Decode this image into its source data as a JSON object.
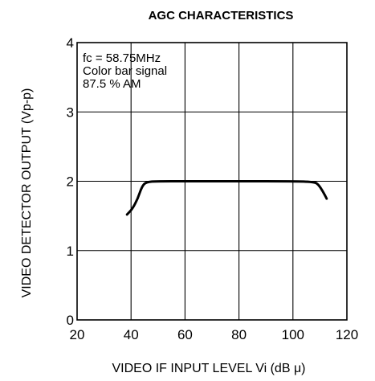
{
  "chart_data": {
    "type": "line",
    "title": "AGC CHARACTERISTICS",
    "xlabel": "VIDEO IF INPUT LEVEL Vi (dB μ)",
    "ylabel": "VIDEO DETECTOR OUTPUT (Vp-p)",
    "xlim": [
      20,
      120
    ],
    "ylim": [
      0,
      4
    ],
    "x_ticks": [
      "20",
      "40",
      "60",
      "80",
      "100",
      "120"
    ],
    "y_ticks": [
      "0",
      "1",
      "2",
      "3",
      "4"
    ],
    "grid": true,
    "annotations": [
      "fc = 58.75MHz",
      "Color bar signal",
      "87.5 % AM"
    ],
    "series": [
      {
        "x": [
          38.5,
          40.5,
          42.5,
          44,
          45.5,
          50,
          60,
          80,
          100,
          108,
          109.5,
          111,
          112.5
        ],
        "y": [
          1.52,
          1.6,
          1.75,
          1.92,
          1.99,
          2.0,
          2.0,
          2.0,
          2.0,
          1.99,
          1.95,
          1.86,
          1.75
        ]
      }
    ]
  }
}
